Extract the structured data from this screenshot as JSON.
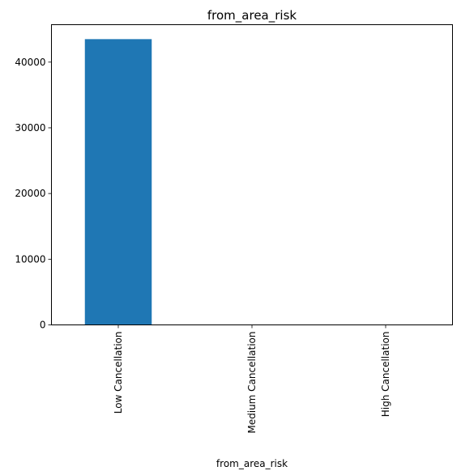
{
  "chart_data": {
    "type": "bar",
    "title": "from_area_risk",
    "xlabel": "from_area_risk",
    "ylabel": "",
    "categories": [
      "Low Cancellation",
      "Medium Cancellation",
      "High Cancellation"
    ],
    "values": [
      43500,
      0,
      0
    ],
    "ylim": [
      0,
      45700
    ],
    "yticks": [
      0,
      10000,
      20000,
      30000,
      40000
    ],
    "ytick_labels": [
      "0",
      "10000",
      "20000",
      "30000",
      "40000"
    ],
    "bar_color": "#1f77b4",
    "grid": false,
    "legend": false
  }
}
